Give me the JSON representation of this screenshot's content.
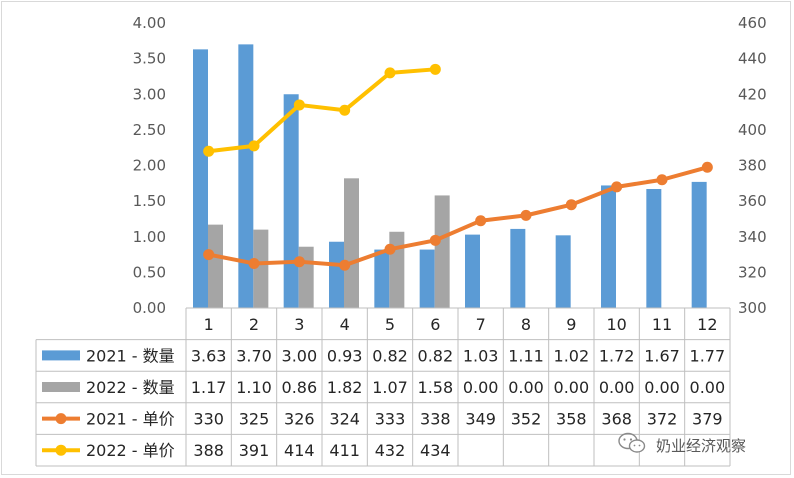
{
  "chart_data": {
    "type": "bar",
    "categories": [
      "1",
      "2",
      "3",
      "4",
      "5",
      "6",
      "7",
      "8",
      "9",
      "10",
      "11",
      "12"
    ],
    "series": [
      {
        "name": "2021 - 数量",
        "kind": "bar",
        "axis": "left",
        "color": "#5B9BD5",
        "values": [
          3.63,
          3.7,
          3.0,
          0.93,
          0.82,
          0.82,
          1.03,
          1.11,
          1.02,
          1.72,
          1.67,
          1.77
        ],
        "labels": [
          "3.63",
          "3.70",
          "3.00",
          "0.93",
          "0.82",
          "0.82",
          "1.03",
          "1.11",
          "1.02",
          "1.72",
          "1.67",
          "1.77"
        ]
      },
      {
        "name": "2022 - 数量",
        "kind": "bar",
        "axis": "left",
        "color": "#A5A5A5",
        "values": [
          1.17,
          1.1,
          0.86,
          1.82,
          1.07,
          1.58,
          0.0,
          0.0,
          0.0,
          0.0,
          0.0,
          0.0
        ],
        "labels": [
          "1.17",
          "1.10",
          "0.86",
          "1.82",
          "1.07",
          "1.58",
          "0.00",
          "0.00",
          "0.00",
          "0.00",
          "0.00",
          "0.00"
        ]
      },
      {
        "name": "2021 - 单价",
        "kind": "line",
        "axis": "right",
        "color": "#ED7D31",
        "values": [
          330,
          325,
          326,
          324,
          333,
          338,
          349,
          352,
          358,
          368,
          372,
          379
        ],
        "labels": [
          "330",
          "325",
          "326",
          "324",
          "333",
          "338",
          "349",
          "352",
          "358",
          "368",
          "372",
          "379"
        ]
      },
      {
        "name": "2022 - 单价",
        "kind": "line",
        "axis": "right",
        "color": "#FFC000",
        "values": [
          388,
          391,
          414,
          411,
          432,
          434,
          null,
          null,
          null,
          null,
          null,
          null
        ],
        "labels": [
          "388",
          "391",
          "414",
          "411",
          "432",
          "434",
          "",
          "",
          "",
          "",
          "",
          ""
        ]
      }
    ],
    "y_left": {
      "range": [
        0,
        4
      ],
      "ticks": [
        "0.00",
        "0.50",
        "1.00",
        "1.50",
        "2.00",
        "2.50",
        "3.00",
        "3.50",
        "4.00"
      ]
    },
    "y_right": {
      "range": [
        300,
        460
      ],
      "ticks": [
        "300",
        "320",
        "340",
        "360",
        "380",
        "400",
        "420",
        "440",
        "460"
      ]
    },
    "grid": false,
    "legend": "data table"
  },
  "watermark": "奶业经济观察"
}
